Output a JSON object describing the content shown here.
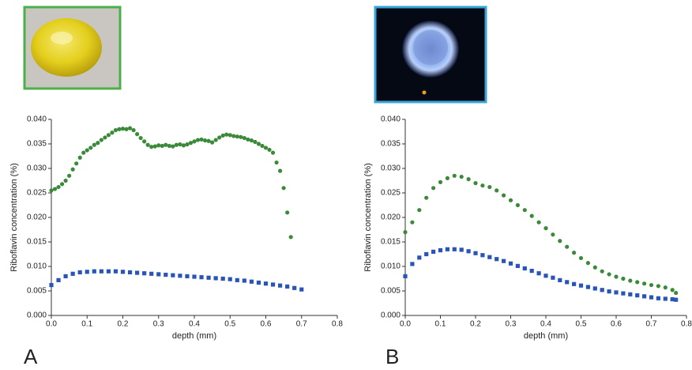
{
  "chart_data": [
    {
      "type": "scatter",
      "panel": "A",
      "xlabel": "depth (mm)",
      "ylabel": "Riboflavin concentration (%)",
      "xlim": [
        0,
        0.8
      ],
      "ylim": [
        0,
        0.04
      ],
      "xticks": [
        {
          "value": 0,
          "label": "0.0"
        },
        {
          "value": 0.1,
          "label": "0.1"
        },
        {
          "value": 0.2,
          "label": "0.2"
        },
        {
          "value": 0.3,
          "label": "0.3"
        },
        {
          "value": 0.4,
          "label": "0.4"
        },
        {
          "value": 0.5,
          "label": "0.5"
        },
        {
          "value": 0.6,
          "label": "0.6"
        },
        {
          "value": 0.7,
          "label": "0.7"
        },
        {
          "value": 0.8,
          "label": "0.8"
        }
      ],
      "yticks": [
        {
          "value": 0,
          "label": "0.000"
        },
        {
          "value": 0.005,
          "label": "0.005"
        },
        {
          "value": 0.01,
          "label": "0.010"
        },
        {
          "value": 0.015,
          "label": "0.015"
        },
        {
          "value": 0.02,
          "label": "0.020"
        },
        {
          "value": 0.025,
          "label": "0.025"
        },
        {
          "value": 0.03,
          "label": "0.030"
        },
        {
          "value": 0.035,
          "label": "0.035"
        },
        {
          "value": 0.04,
          "label": "0.040"
        }
      ],
      "series": [
        {
          "color": "#3a8a3a",
          "marker": "circle",
          "x": [
            0,
            0.01,
            0.02,
            0.03,
            0.04,
            0.05,
            0.06,
            0.07,
            0.08,
            0.09,
            0.1,
            0.11,
            0.12,
            0.13,
            0.14,
            0.15,
            0.16,
            0.17,
            0.18,
            0.19,
            0.2,
            0.21,
            0.22,
            0.23,
            0.24,
            0.25,
            0.26,
            0.27,
            0.28,
            0.29,
            0.3,
            0.31,
            0.32,
            0.33,
            0.34,
            0.35,
            0.36,
            0.37,
            0.38,
            0.39,
            0.4,
            0.41,
            0.42,
            0.43,
            0.44,
            0.45,
            0.46,
            0.47,
            0.48,
            0.49,
            0.5,
            0.51,
            0.52,
            0.53,
            0.54,
            0.55,
            0.56,
            0.57,
            0.58,
            0.59,
            0.6,
            0.61,
            0.62,
            0.63,
            0.64,
            0.65,
            0.66,
            0.67
          ],
          "values": [
            0.0255,
            0.0258,
            0.0262,
            0.0268,
            0.0275,
            0.0285,
            0.0298,
            0.031,
            0.0322,
            0.0332,
            0.0337,
            0.0342,
            0.0348,
            0.0352,
            0.0358,
            0.0363,
            0.0368,
            0.0373,
            0.0378,
            0.038,
            0.0381,
            0.038,
            0.0382,
            0.0378,
            0.037,
            0.0362,
            0.0355,
            0.0348,
            0.0344,
            0.0345,
            0.0347,
            0.0346,
            0.0348,
            0.0346,
            0.0345,
            0.0348,
            0.0349,
            0.0347,
            0.0349,
            0.0352,
            0.0355,
            0.0358,
            0.0359,
            0.0357,
            0.0356,
            0.0353,
            0.0358,
            0.0363,
            0.0367,
            0.0369,
            0.0368,
            0.0366,
            0.0365,
            0.0364,
            0.0362,
            0.0359,
            0.0357,
            0.0354,
            0.035,
            0.0346,
            0.0342,
            0.0338,
            0.0332,
            0.0312,
            0.0295,
            0.026,
            0.021,
            0.016
          ]
        },
        {
          "color": "#2a55b8",
          "marker": "square",
          "x": [
            0,
            0.02,
            0.04,
            0.06,
            0.08,
            0.1,
            0.12,
            0.14,
            0.16,
            0.18,
            0.2,
            0.22,
            0.24,
            0.26,
            0.28,
            0.3,
            0.32,
            0.34,
            0.36,
            0.38,
            0.4,
            0.42,
            0.44,
            0.46,
            0.48,
            0.5,
            0.52,
            0.54,
            0.56,
            0.58,
            0.6,
            0.62,
            0.64,
            0.66,
            0.68,
            0.7
          ],
          "values": [
            0.0062,
            0.0072,
            0.008,
            0.0085,
            0.0088,
            0.0089,
            0.009,
            0.009,
            0.009,
            0.009,
            0.0089,
            0.0088,
            0.0087,
            0.0086,
            0.0085,
            0.0084,
            0.0083,
            0.0082,
            0.0081,
            0.008,
            0.0079,
            0.0078,
            0.0077,
            0.0076,
            0.0075,
            0.0074,
            0.0072,
            0.0071,
            0.0069,
            0.0067,
            0.0065,
            0.0063,
            0.0061,
            0.0059,
            0.0056,
            0.0053
          ]
        }
      ]
    },
    {
      "type": "scatter",
      "panel": "B",
      "xlabel": "depth (mm)",
      "ylabel": "Riboflavin concentration (%)",
      "xlim": [
        0,
        0.8
      ],
      "ylim": [
        0,
        0.04
      ],
      "xticks": [
        {
          "value": 0,
          "label": "0.0"
        },
        {
          "value": 0.1,
          "label": "0.1"
        },
        {
          "value": 0.2,
          "label": "0.2"
        },
        {
          "value": 0.3,
          "label": "0.3"
        },
        {
          "value": 0.4,
          "label": "0.4"
        },
        {
          "value": 0.5,
          "label": "0.5"
        },
        {
          "value": 0.6,
          "label": "0.6"
        },
        {
          "value": 0.7,
          "label": "0.7"
        },
        {
          "value": 0.8,
          "label": "0.8"
        }
      ],
      "yticks": [
        {
          "value": 0,
          "label": "0.000"
        },
        {
          "value": 0.005,
          "label": "0.005"
        },
        {
          "value": 0.01,
          "label": "0.010"
        },
        {
          "value": 0.015,
          "label": "0.015"
        },
        {
          "value": 0.02,
          "label": "0.020"
        },
        {
          "value": 0.025,
          "label": "0.025"
        },
        {
          "value": 0.03,
          "label": "0.030"
        },
        {
          "value": 0.035,
          "label": "0.035"
        },
        {
          "value": 0.04,
          "label": "0.040"
        }
      ],
      "series": [
        {
          "color": "#3a8a3a",
          "marker": "circle",
          "x": [
            0,
            0.02,
            0.04,
            0.06,
            0.08,
            0.1,
            0.12,
            0.14,
            0.16,
            0.18,
            0.2,
            0.22,
            0.24,
            0.26,
            0.28,
            0.3,
            0.32,
            0.34,
            0.36,
            0.38,
            0.4,
            0.42,
            0.44,
            0.46,
            0.48,
            0.5,
            0.52,
            0.54,
            0.56,
            0.58,
            0.6,
            0.62,
            0.64,
            0.66,
            0.68,
            0.7,
            0.72,
            0.74,
            0.76,
            0.77
          ],
          "values": [
            0.017,
            0.019,
            0.0215,
            0.024,
            0.026,
            0.0272,
            0.028,
            0.0285,
            0.0283,
            0.0278,
            0.027,
            0.0265,
            0.0262,
            0.0255,
            0.0245,
            0.0235,
            0.0225,
            0.0215,
            0.0203,
            0.019,
            0.0178,
            0.0165,
            0.0152,
            0.014,
            0.0128,
            0.0117,
            0.0107,
            0.0098,
            0.009,
            0.0084,
            0.0079,
            0.0075,
            0.0071,
            0.0068,
            0.0065,
            0.0062,
            0.006,
            0.0057,
            0.0052,
            0.0046
          ]
        },
        {
          "color": "#2a55b8",
          "marker": "square",
          "x": [
            0,
            0.02,
            0.04,
            0.06,
            0.08,
            0.1,
            0.12,
            0.14,
            0.16,
            0.18,
            0.2,
            0.22,
            0.24,
            0.26,
            0.28,
            0.3,
            0.32,
            0.34,
            0.36,
            0.38,
            0.4,
            0.42,
            0.44,
            0.46,
            0.48,
            0.5,
            0.52,
            0.54,
            0.56,
            0.58,
            0.6,
            0.62,
            0.64,
            0.66,
            0.68,
            0.7,
            0.72,
            0.74,
            0.76,
            0.77
          ],
          "values": [
            0.008,
            0.0105,
            0.0118,
            0.0125,
            0.013,
            0.0133,
            0.0135,
            0.0135,
            0.0134,
            0.0131,
            0.0127,
            0.0123,
            0.0119,
            0.0115,
            0.0111,
            0.0106,
            0.0101,
            0.0096,
            0.0091,
            0.0086,
            0.0081,
            0.0077,
            0.0072,
            0.0068,
            0.0064,
            0.0061,
            0.0058,
            0.0055,
            0.0052,
            0.0049,
            0.0047,
            0.0045,
            0.0043,
            0.0041,
            0.0039,
            0.0037,
            0.0035,
            0.0034,
            0.0033,
            0.0032
          ]
        }
      ]
    }
  ]
}
